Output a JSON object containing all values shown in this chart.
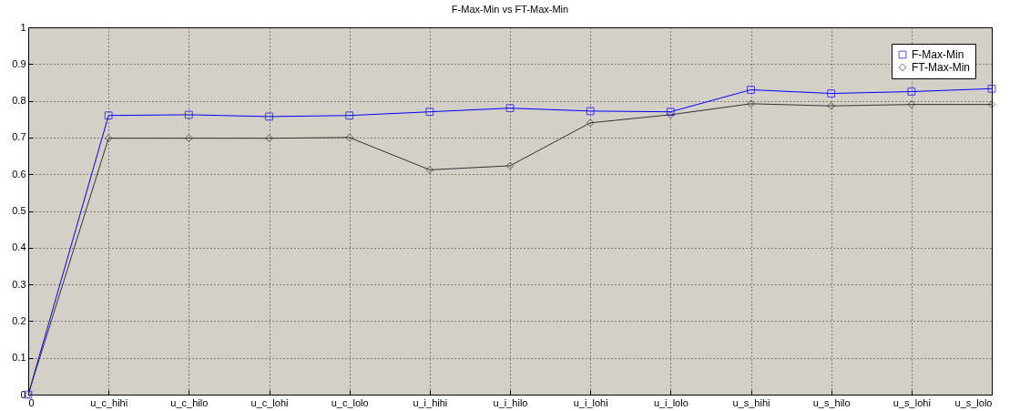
{
  "chart_data": {
    "type": "line",
    "title": "F-Max-Min vs FT-Max-Min",
    "categories": [
      "0",
      "u_c_hihi",
      "u_c_hilo",
      "u_c_lohi",
      "u_c_lolo",
      "u_i_hihi",
      "u_i_hilo",
      "u_i_lohi",
      "u_i_lolo",
      "u_s_hihi",
      "u_s_hilo",
      "u_s_lohi",
      "u_s_lolo"
    ],
    "series": [
      {
        "name": "F-Max-Min",
        "color": "#0000ff",
        "marker": "square",
        "values": [
          0,
          0.76,
          0.762,
          0.757,
          0.76,
          0.77,
          0.78,
          0.772,
          0.77,
          0.83,
          0.82,
          0.825,
          0.833
        ]
      },
      {
        "name": "FT-Max-Min",
        "color": "#333333",
        "marker": "diamond",
        "values": [
          0,
          0.698,
          0.698,
          0.698,
          0.7,
          0.612,
          0.623,
          0.74,
          0.762,
          0.792,
          0.786,
          0.79,
          0.79
        ]
      }
    ],
    "ylim": [
      0,
      1
    ],
    "yticks": [
      {
        "value": 0,
        "label": "0"
      },
      0.1,
      0.2,
      0.3,
      0.4,
      0.5,
      0.6,
      0.7,
      0.8,
      0.9,
      {
        "value": 1,
        "label": "1"
      }
    ],
    "grid": true,
    "legend": "top right",
    "line_style": "solid"
  }
}
